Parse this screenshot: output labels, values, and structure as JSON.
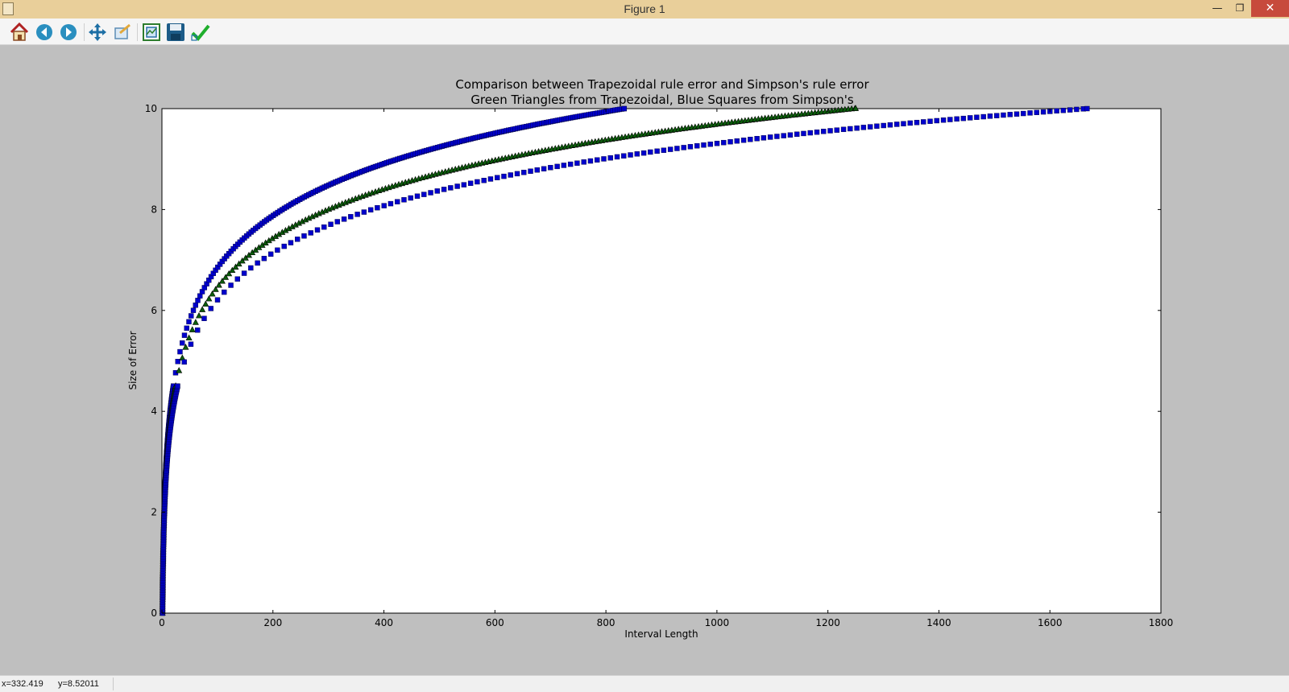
{
  "window": {
    "title": "Figure 1",
    "minimize_label": "—",
    "restore_label": "❐",
    "close_label": "✕"
  },
  "toolbar": {
    "buttons": [
      {
        "name": "home",
        "icon": "home-icon"
      },
      {
        "name": "back",
        "icon": "arrow-left-icon"
      },
      {
        "name": "forward",
        "icon": "arrow-right-icon"
      },
      {
        "name": "pan",
        "icon": "move-icon"
      },
      {
        "name": "zoom",
        "icon": "zoom-rect-icon"
      },
      {
        "name": "subplots",
        "icon": "subplots-icon"
      },
      {
        "name": "save",
        "icon": "floppy-disk-icon"
      },
      {
        "name": "edit",
        "icon": "checkmark-icon"
      }
    ]
  },
  "status": {
    "x_readout": "x=332.419",
    "y_readout": "y=8.52011"
  },
  "colors": {
    "trapezoidal": "#0b5d0b",
    "simpson": "#0000cc",
    "axes_bg": "#ffffff",
    "figure_bg": "#bfbfbf"
  },
  "chart_data": {
    "type": "scatter",
    "title": "Comparison between Trapezoidal rule error and Simpson's rule error",
    "subtitle": "Green Triangles from Trapezoidal, Blue Squares from Simpson's",
    "xlabel": "Interval Length",
    "ylabel": "Size of Error",
    "xlim": [
      0,
      1800
    ],
    "ylim": [
      0,
      10
    ],
    "xticks": [
      0,
      200,
      400,
      600,
      800,
      1000,
      1200,
      1400,
      1600,
      1800
    ],
    "yticks": [
      0,
      2,
      4,
      6,
      8,
      10
    ],
    "grid": false,
    "series": [
      {
        "marker": "square",
        "color": "#0000cc",
        "curve": "y = ln(x)/ln(1.962)",
        "x_max": 833,
        "y_max": 10
      },
      {
        "marker": "triangle",
        "color": "#0b5d0b",
        "curve": "y = ln(x)/ln(2.04)",
        "x_max": 1250,
        "y_max": 10
      },
      {
        "marker": "square",
        "color": "#0000cc",
        "curve": "y = ln(x)/ln(2.1)",
        "x_max": 1667,
        "y_max": 10
      }
    ]
  }
}
